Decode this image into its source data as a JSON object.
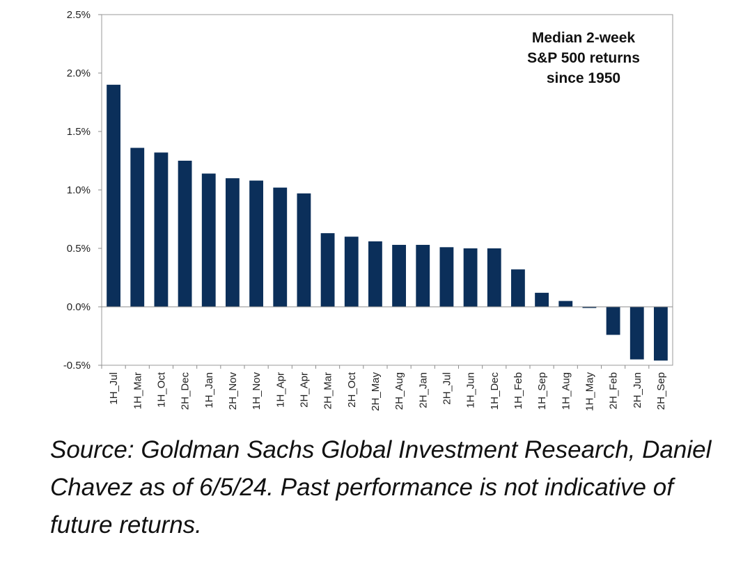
{
  "colors": {
    "bar": "#0b2f5a",
    "axis": "#8c8c8c",
    "plot_border": "#9a9a9a"
  },
  "chart_data": {
    "type": "bar",
    "title_lines": [
      "Median 2-week",
      "S&P 500 returns",
      "since 1950"
    ],
    "categories": [
      "1H_Jul",
      "1H_Mar",
      "1H_Oct",
      "2H_Dec",
      "1H_Jan",
      "2H_Nov",
      "1H_Nov",
      "1H_Apr",
      "2H_Apr",
      "2H_Mar",
      "2H_Oct",
      "2H_May",
      "2H_Aug",
      "2H_Jan",
      "2H_Jul",
      "1H_Jun",
      "1H_Dec",
      "1H_Feb",
      "1H_Sep",
      "1H_Aug",
      "1H_May",
      "2H_Feb",
      "2H_Jun",
      "2H_Sep"
    ],
    "values": [
      1.9,
      1.36,
      1.32,
      1.25,
      1.14,
      1.1,
      1.08,
      1.02,
      0.97,
      0.63,
      0.6,
      0.56,
      0.53,
      0.53,
      0.51,
      0.5,
      0.5,
      0.32,
      0.12,
      0.05,
      -0.01,
      -0.24,
      -0.45,
      -0.46
    ],
    "ylim": [
      -0.5,
      2.5
    ],
    "yticks": [
      2.5,
      2.0,
      1.5,
      1.0,
      0.5,
      0.0,
      -0.5
    ],
    "ytick_labels": [
      "2.5%",
      "2.0%",
      "1.5%",
      "1.0%",
      "0.5%",
      "0.0%",
      "-0.5%"
    ],
    "xlabel": "",
    "ylabel": "",
    "grid": false,
    "legend": false
  },
  "source_note": "Source: Goldman Sachs Global Investment Research, Daniel Chavez  as of 6/5/24. Past performance is not indicative of future returns."
}
